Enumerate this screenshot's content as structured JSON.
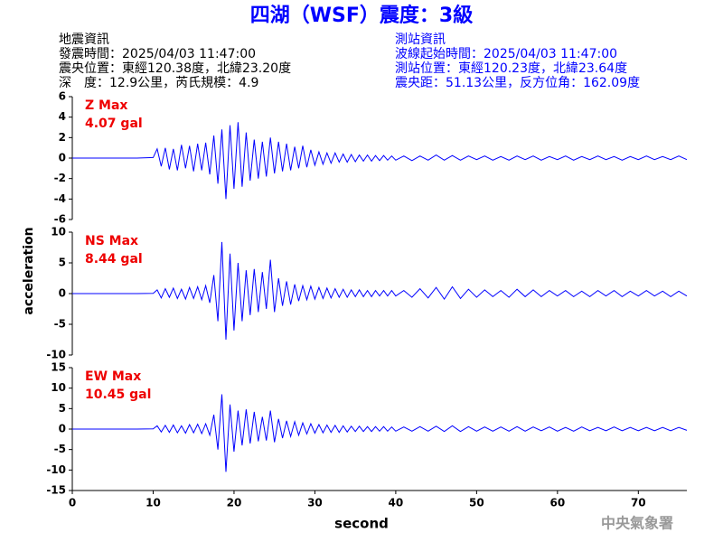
{
  "header": {
    "title": "四湖（WSF）震度：3級",
    "left": [
      "地震資訊",
      "發震時間：2025/04/03 11:47:00",
      "震央位置：東經120.38度，北緯23.20度",
      "深　度：12.9公里，芮氏規模：4.9"
    ],
    "right": [
      "測站資訊",
      "波線起始時間：2025/04/03 11:47:00",
      "測站位置：東經120.23度，北緯23.64度",
      "震央距：51.13公里，反方位角：162.09度"
    ],
    "footer": "中央氣象署"
  },
  "chart_data": [
    {
      "type": "line",
      "label": "Z Max",
      "max_label": "4.07 gal",
      "color": "#0000ff",
      "xlim": [
        0,
        76
      ],
      "ylim": [
        -6,
        6
      ],
      "yticks": [
        -6,
        -4,
        -2,
        0,
        2,
        4,
        6
      ],
      "x": [
        0,
        2,
        4,
        6,
        8,
        10,
        10.5,
        11,
        11.5,
        12,
        12.5,
        13,
        13.5,
        14,
        14.5,
        15,
        15.5,
        16,
        16.5,
        17,
        17.5,
        18,
        18.5,
        19,
        19.5,
        20,
        20.5,
        21,
        21.5,
        22,
        22.5,
        23,
        23.5,
        24,
        24.5,
        25,
        25.5,
        26,
        26.5,
        27,
        27.5,
        28,
        28.5,
        29,
        29.5,
        30,
        30.5,
        31,
        31.5,
        32,
        32.5,
        33,
        33.5,
        34,
        34.5,
        35,
        35.5,
        36,
        36.5,
        37,
        37.5,
        38,
        38.5,
        39,
        39.5,
        40,
        41,
        42,
        43,
        44,
        45,
        46,
        47,
        48,
        49,
        50,
        51,
        52,
        53,
        54,
        55,
        56,
        57,
        58,
        59,
        60,
        61,
        62,
        63,
        64,
        65,
        66,
        67,
        68,
        69,
        70,
        71,
        72,
        73,
        74,
        75,
        76
      ],
      "values": [
        0,
        0,
        0,
        0,
        0,
        0.05,
        0.9,
        -0.8,
        1.0,
        -1.1,
        0.9,
        -1.2,
        1.3,
        -1.0,
        1.2,
        -1.3,
        1.4,
        -1.2,
        1.5,
        -1.6,
        2.2,
        -2.5,
        2.8,
        -4.0,
        3.2,
        -3.0,
        3.5,
        -2.8,
        2.5,
        -2.2,
        1.8,
        -2.0,
        1.6,
        -1.8,
        2.0,
        -1.5,
        1.6,
        -1.3,
        1.4,
        -1.2,
        1.1,
        -1.0,
        1.2,
        -0.9,
        0.8,
        -0.7,
        0.6,
        -0.6,
        0.5,
        -0.5,
        0.5,
        -0.4,
        0.4,
        -0.4,
        0.35,
        -0.35,
        0.3,
        -0.3,
        0.3,
        -0.3,
        0.25,
        -0.25,
        0.25,
        -0.2,
        0.2,
        -0.2,
        0.2,
        -0.25,
        0.2,
        -0.2,
        0.3,
        -0.2,
        0.25,
        -0.2,
        0.2,
        -0.15,
        0.2,
        -0.2,
        0.15,
        -0.2,
        0.2,
        -0.15,
        0.2,
        -0.2,
        0.15,
        -0.15,
        0.2,
        -0.2,
        0.15,
        -0.15,
        0.2,
        -0.15,
        0.15,
        -0.2,
        0.15,
        -0.15,
        0.2,
        -0.15,
        0.15,
        -0.15,
        0.2,
        -0.15
      ]
    },
    {
      "type": "line",
      "label": "NS Max",
      "max_label": "8.44 gal",
      "color": "#0000ff",
      "ylabel": "acceleration",
      "xlim": [
        0,
        76
      ],
      "ylim": [
        -10,
        10
      ],
      "yticks": [
        -10,
        -5,
        0,
        5,
        10
      ],
      "x": [
        0,
        2,
        4,
        6,
        8,
        10,
        10.5,
        11,
        11.5,
        12,
        12.5,
        13,
        13.5,
        14,
        14.5,
        15,
        15.5,
        16,
        16.5,
        17,
        17.5,
        18,
        18.5,
        19,
        19.5,
        20,
        20.5,
        21,
        21.5,
        22,
        22.5,
        23,
        23.5,
        24,
        24.5,
        25,
        25.5,
        26,
        26.5,
        27,
        27.5,
        28,
        28.5,
        29,
        29.5,
        30,
        30.5,
        31,
        31.5,
        32,
        32.5,
        33,
        33.5,
        34,
        34.5,
        35,
        35.5,
        36,
        36.5,
        37,
        37.5,
        38,
        38.5,
        39,
        39.5,
        40,
        41,
        42,
        43,
        44,
        45,
        46,
        47,
        48,
        49,
        50,
        51,
        52,
        53,
        54,
        55,
        56,
        57,
        58,
        59,
        60,
        61,
        62,
        63,
        64,
        65,
        66,
        67,
        68,
        69,
        70,
        71,
        72,
        73,
        74,
        75,
        76
      ],
      "values": [
        0,
        0,
        0,
        0,
        0,
        0.05,
        0.6,
        -0.7,
        0.8,
        -0.6,
        0.9,
        -0.8,
        0.7,
        -0.9,
        1.0,
        -0.8,
        1.1,
        -1.0,
        1.3,
        -1.5,
        3.0,
        -4.5,
        8.4,
        -7.5,
        6.5,
        -6.0,
        5.0,
        -4.5,
        3.8,
        -3.5,
        4.0,
        -3.0,
        3.5,
        -2.5,
        5.5,
        -3.0,
        2.5,
        -2.0,
        2.0,
        -1.8,
        1.5,
        -1.2,
        1.3,
        -1.0,
        1.2,
        -0.9,
        1.0,
        -0.8,
        0.9,
        -0.7,
        0.8,
        -0.6,
        0.7,
        -0.6,
        0.6,
        -0.5,
        0.6,
        -0.5,
        0.5,
        -0.5,
        0.5,
        -0.4,
        0.5,
        -0.4,
        0.5,
        -0.4,
        0.5,
        -0.6,
        0.8,
        -0.7,
        1.0,
        -0.9,
        1.1,
        -0.8,
        0.7,
        -0.6,
        0.6,
        -0.5,
        0.5,
        -0.6,
        0.7,
        -0.5,
        0.6,
        -0.5,
        0.5,
        -0.4,
        0.5,
        -0.5,
        0.4,
        -0.5,
        0.5,
        -0.4,
        0.5,
        -0.5,
        0.4,
        -0.4,
        0.5,
        -0.4,
        0.4,
        -0.5,
        0.4,
        -0.4
      ]
    },
    {
      "type": "line",
      "label": "EW Max",
      "max_label": "10.45 gal",
      "color": "#0000ff",
      "xlabel": "second",
      "xlim": [
        0,
        76
      ],
      "xticks": [
        0,
        10,
        20,
        30,
        40,
        50,
        60,
        70
      ],
      "ylim": [
        -15,
        15
      ],
      "yticks": [
        -15,
        -10,
        -5,
        0,
        5,
        10,
        15
      ],
      "x": [
        0,
        2,
        4,
        6,
        8,
        10,
        10.5,
        11,
        11.5,
        12,
        12.5,
        13,
        13.5,
        14,
        14.5,
        15,
        15.5,
        16,
        16.5,
        17,
        17.5,
        18,
        18.5,
        19,
        19.5,
        20,
        20.5,
        21,
        21.5,
        22,
        22.5,
        23,
        23.5,
        24,
        24.5,
        25,
        25.5,
        26,
        26.5,
        27,
        27.5,
        28,
        28.5,
        29,
        29.5,
        30,
        30.5,
        31,
        31.5,
        32,
        32.5,
        33,
        33.5,
        34,
        34.5,
        35,
        35.5,
        36,
        36.5,
        37,
        37.5,
        38,
        38.5,
        39,
        39.5,
        40,
        41,
        42,
        43,
        44,
        45,
        46,
        47,
        48,
        49,
        50,
        51,
        52,
        53,
        54,
        55,
        56,
        57,
        58,
        59,
        60,
        61,
        62,
        63,
        64,
        65,
        66,
        67,
        68,
        69,
        70,
        71,
        72,
        73,
        74,
        75,
        76
      ],
      "values": [
        0,
        0,
        0,
        0,
        0,
        0.05,
        0.8,
        -0.7,
        0.9,
        -0.8,
        1.0,
        -0.9,
        0.8,
        -1.0,
        1.1,
        -0.9,
        1.2,
        -1.1,
        1.3,
        -1.5,
        3.5,
        -5.0,
        8.5,
        -10.45,
        6.0,
        -5.5,
        4.5,
        -4.0,
        4.8,
        -3.5,
        4.2,
        -3.0,
        3.0,
        -2.8,
        4.5,
        -3.2,
        2.5,
        -2.2,
        2.0,
        -1.8,
        1.8,
        -1.5,
        1.5,
        -1.2,
        1.3,
        -1.0,
        1.1,
        -0.9,
        1.0,
        -0.8,
        0.9,
        -0.8,
        0.8,
        -0.7,
        0.7,
        -0.6,
        0.7,
        -0.6,
        0.6,
        -0.6,
        0.6,
        -0.5,
        0.6,
        -0.5,
        0.5,
        -0.5,
        0.5,
        -0.5,
        0.6,
        -0.5,
        0.7,
        -0.6,
        0.8,
        -0.6,
        0.6,
        -0.5,
        0.5,
        -0.5,
        0.5,
        -0.5,
        0.6,
        -0.5,
        0.5,
        -0.4,
        0.5,
        -0.5,
        0.4,
        -0.5,
        0.5,
        -0.4,
        0.4,
        -0.4,
        0.5,
        -0.4,
        0.4,
        -0.4,
        0.4,
        -0.4,
        0.4,
        -0.4,
        0.4,
        -0.3
      ]
    }
  ]
}
